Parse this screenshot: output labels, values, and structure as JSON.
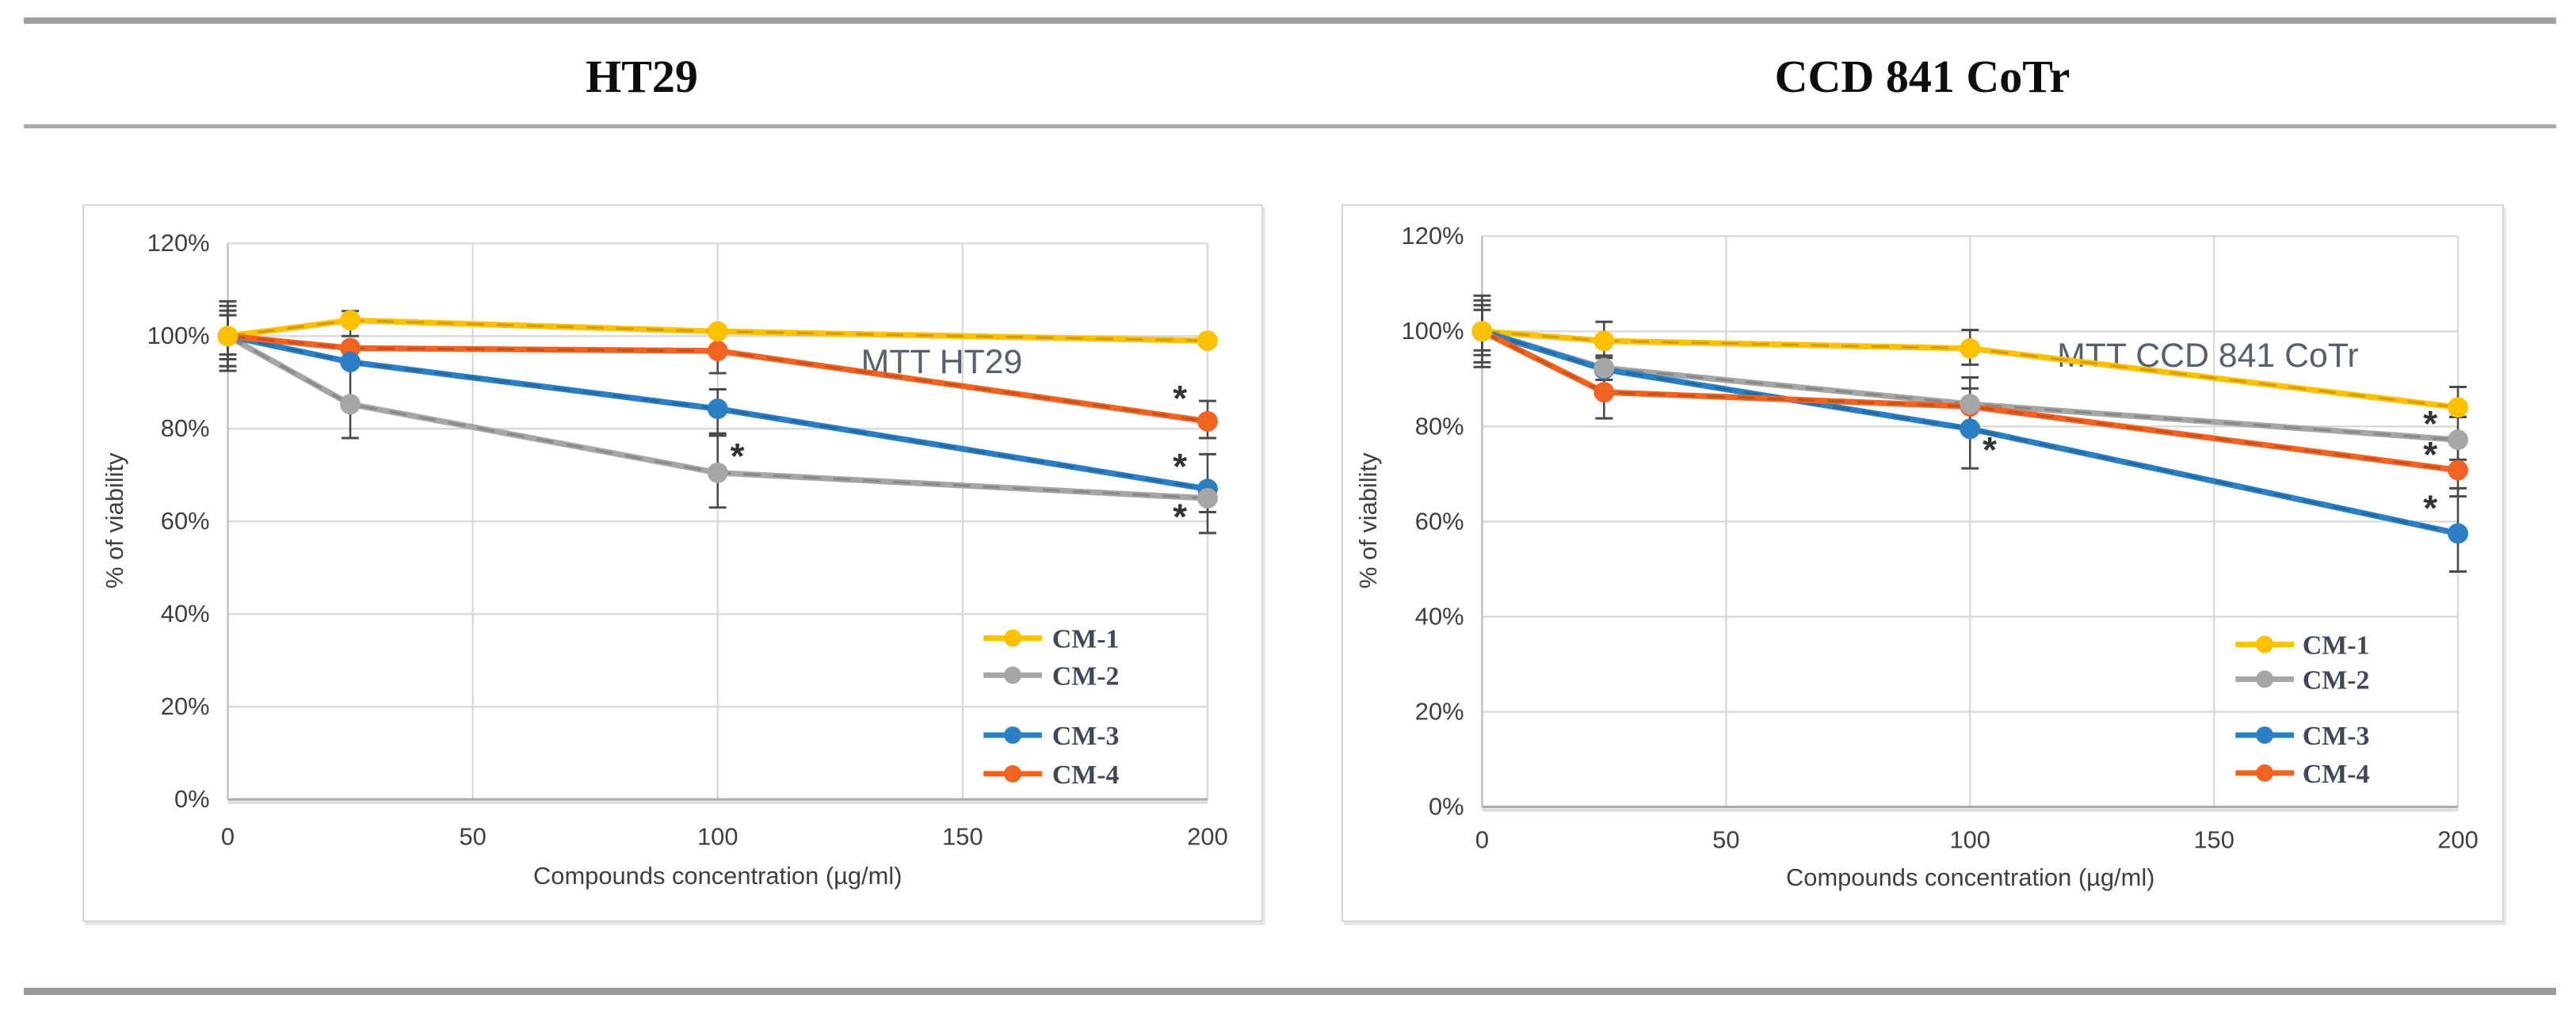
{
  "header": {
    "left_title": "HT29",
    "right_title": "CCD 841 CoTr"
  },
  "colors": {
    "cm1": "#FFC000",
    "cm2": "#A6A6A6",
    "cm3": "#2A7FC5",
    "cm4": "#F26322",
    "grid": "#D9D9D9",
    "axis_line": "#A8A8A8",
    "y_axis_line": "#BFBFBF",
    "tick_text": "#3F3F3F",
    "chart_title_text": "#57606E",
    "legend_text": "#404759",
    "error_bar": "#4A4A4A",
    "rule": "#9E9E9E"
  },
  "chart_data": [
    {
      "type": "line",
      "title": "MTT HT29",
      "xlabel": "Compounds concentration (µg/ml)",
      "ylabel": "% of viability",
      "x": [
        0,
        25,
        100,
        200
      ],
      "x_ticks": [
        0,
        50,
        100,
        150,
        200
      ],
      "y_ticks": [
        "120%",
        "100%",
        "80%",
        "60%",
        "40%",
        "20%",
        "0%"
      ],
      "xlim": [
        0,
        200
      ],
      "ylim": [
        0,
        120
      ],
      "grid": true,
      "legend_position": "inside right",
      "series": [
        {
          "name": "CM-1",
          "color_key": "cm1",
          "values": [
            100,
            103.4,
            101,
            99
          ],
          "errors": [
            [
              96,
              104.5
            ],
            [
              100,
              105.4
            ],
            null,
            null
          ]
        },
        {
          "name": "CM-2",
          "color_key": "cm2",
          "values": [
            100,
            85.3,
            70.5,
            65
          ],
          "errors": [
            [
              92.5,
              107.5
            ],
            [
              78,
              93.5
            ],
            [
              63,
              78.5
            ],
            [
              57.5,
              66
            ]
          ]
        },
        {
          "name": "CM-3",
          "color_key": "cm3",
          "values": [
            100,
            94.4,
            84.3,
            67
          ],
          "errors": [
            [
              95,
              105.5
            ],
            null,
            [
              79,
              88.5
            ],
            [
              62,
              74.5
            ]
          ]
        },
        {
          "name": "CM-4",
          "color_key": "cm4",
          "values": [
            100,
            97.4,
            96.8,
            81.6
          ],
          "errors": [
            [
              93.5,
              106.5
            ],
            null,
            [
              92,
              101.5
            ],
            [
              78,
              86
            ]
          ]
        }
      ],
      "annotations": [
        {
          "x": 100,
          "y": 74,
          "text": "*",
          "side": "right"
        },
        {
          "x": 200,
          "y": 86.4,
          "text": "*",
          "side": "left"
        },
        {
          "x": 200,
          "y": 71.7,
          "text": "*",
          "side": "left"
        },
        {
          "x": 200,
          "y": 60.9,
          "text": "*",
          "side": "left"
        }
      ]
    },
    {
      "type": "line",
      "title": "MTT CCD 841 CoTr",
      "xlabel": "Compounds concentration (µg/ml)",
      "ylabel": "% of viability",
      "x": [
        0,
        25,
        100,
        200
      ],
      "x_ticks": [
        0,
        50,
        100,
        150,
        200
      ],
      "y_ticks": [
        "120%",
        "100%",
        "80%",
        "60%",
        "40%",
        "20%",
        "0%"
      ],
      "xlim": [
        0,
        200
      ],
      "ylim": [
        0,
        120
      ],
      "grid": true,
      "legend_position": "inside right",
      "series": [
        {
          "name": "CM-1",
          "color_key": "cm1",
          "values": [
            100,
            98,
            96.4,
            84
          ],
          "errors": [
            [
              96,
              104.5
            ],
            [
              94.4,
              102
            ],
            [
              93,
              100.3
            ],
            [
              82,
              88.3
            ]
          ]
        },
        {
          "name": "CM-2",
          "color_key": "cm2",
          "values": [
            100,
            92.3,
            84.7,
            77.2
          ],
          "errors": [
            [
              92.5,
              107.5
            ],
            [
              89.8,
              94.9
            ],
            [
              79.5,
              90.3
            ],
            [
              73,
              82
            ]
          ]
        },
        {
          "name": "CM-3",
          "color_key": "cm3",
          "values": [
            100,
            92,
            79.5,
            57.5
          ],
          "errors": [
            [
              95,
              105.5
            ],
            null,
            [
              71.2,
              88
            ],
            [
              49.5,
              67
            ]
          ]
        },
        {
          "name": "CM-4",
          "color_key": "cm4",
          "values": [
            100,
            87.2,
            84.2,
            70.8
          ],
          "errors": [
            [
              93.5,
              106.5
            ],
            [
              81.7,
              91
            ],
            null,
            [
              65.3,
              77.5
            ]
          ]
        }
      ],
      "annotations": [
        {
          "x": 100,
          "y": 75,
          "text": "*",
          "side": "right"
        },
        {
          "x": 200,
          "y": 80.5,
          "text": "*",
          "side": "left"
        },
        {
          "x": 200,
          "y": 74,
          "text": "*",
          "side": "left"
        },
        {
          "x": 200,
          "y": 62.7,
          "text": "*",
          "side": "left"
        }
      ]
    }
  ]
}
